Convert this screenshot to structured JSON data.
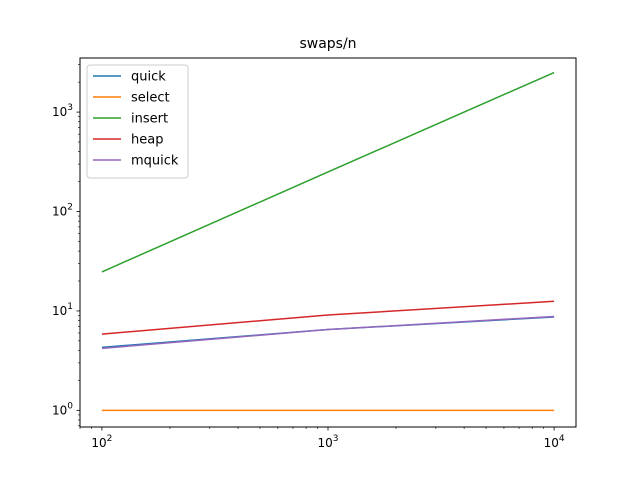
{
  "chart_data": {
    "type": "line",
    "title": "swaps/n",
    "xlabel": "",
    "ylabel": "",
    "xscale": "log",
    "yscale": "log",
    "xlim": [
      80,
      12500
    ],
    "ylim": [
      0.68,
      3500
    ],
    "grid": false,
    "legend_position": "top-left",
    "x_ticks": [
      {
        "value": 100,
        "base": "10",
        "exp": "2"
      },
      {
        "value": 1000,
        "base": "10",
        "exp": "3"
      },
      {
        "value": 10000,
        "base": "10",
        "exp": "4"
      }
    ],
    "y_ticks": [
      {
        "value": 1,
        "base": "10",
        "exp": "0"
      },
      {
        "value": 10,
        "base": "10",
        "exp": "1"
      },
      {
        "value": 100,
        "base": "10",
        "exp": "2"
      },
      {
        "value": 1000,
        "base": "10",
        "exp": "3"
      }
    ],
    "series": [
      {
        "name": "quick",
        "color": "#1f77b4",
        "x": [
          100,
          1000,
          10000
        ],
        "y": [
          4.3,
          6.5,
          8.7
        ]
      },
      {
        "name": "select",
        "color": "#ff7f0e",
        "x": [
          100,
          1000,
          10000
        ],
        "y": [
          1.0,
          1.0,
          1.0
        ]
      },
      {
        "name": "insert",
        "color": "#2ca02c",
        "x": [
          100,
          1000,
          10000
        ],
        "y": [
          24.7,
          250,
          2500
        ]
      },
      {
        "name": "heap",
        "color": "#d62728",
        "x": [
          100,
          1000,
          10000
        ],
        "y": [
          5.85,
          9.1,
          12.5
        ]
      },
      {
        "name": "mquick",
        "color": "#9467bd",
        "x": [
          100,
          1000,
          10000
        ],
        "y": [
          4.2,
          6.5,
          8.8
        ]
      }
    ]
  }
}
